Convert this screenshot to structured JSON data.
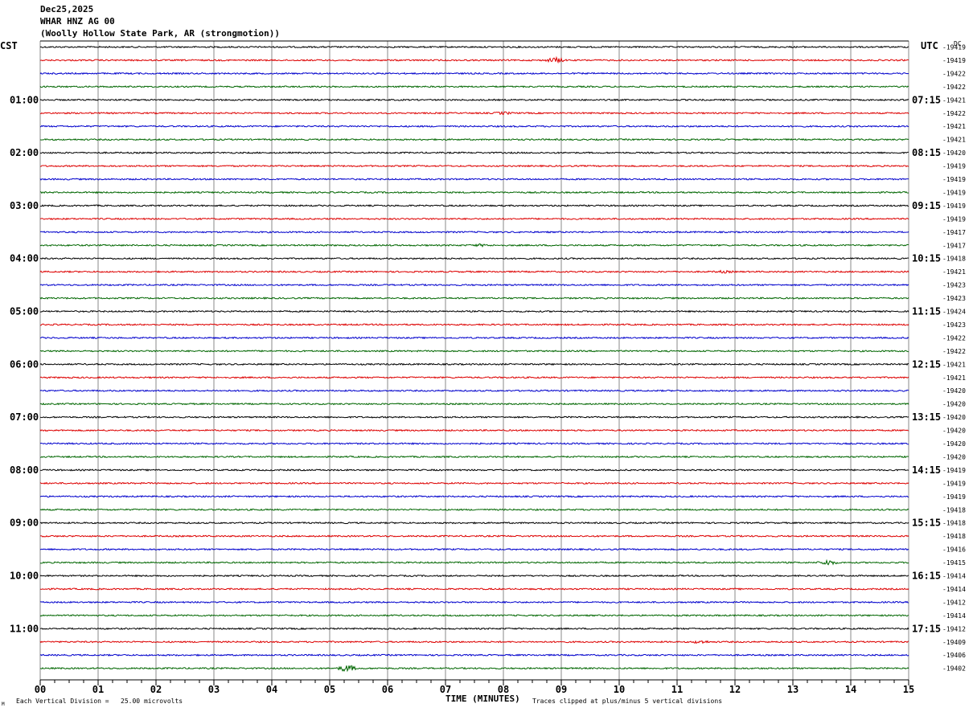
{
  "header": {
    "date": "Dec25,2025",
    "station": "WHAR HNZ AG 00",
    "location": "(Woolly Hollow State Park, AR (strongmotion))"
  },
  "labels": {
    "left_tz": "CST",
    "right_tz": "UTC",
    "dc_header": "DC",
    "xlabel": "TIME (MINUTES)",
    "scale_note": "Each Vertical Division =   25.00 microvolts",
    "clip_note": "Traces clipped at plus/minus 5 vertical divisions",
    "corner_mark": "M"
  },
  "colors": {
    "cycle": [
      "#000000",
      "#dd0000",
      "#0000cc",
      "#006600"
    ],
    "grid": "#888888"
  },
  "chart_data": {
    "type": "line",
    "title": "WHAR HNZ AG 00",
    "xlabel": "TIME (MINUTES)",
    "xlim": [
      0,
      15
    ],
    "x_ticks": [
      "00",
      "01",
      "02",
      "03",
      "04",
      "05",
      "06",
      "07",
      "08",
      "09",
      "10",
      "11",
      "12",
      "13",
      "14",
      "15"
    ],
    "left_hour_labels": [
      "01:00",
      "02:00",
      "03:00",
      "04:00",
      "05:00",
      "06:00",
      "07:00",
      "08:00",
      "09:00",
      "10:00",
      "11:00"
    ],
    "right_hour_labels": [
      "07:15",
      "08:15",
      "09:15",
      "10:15",
      "11:15",
      "12:15",
      "13:15",
      "14:15",
      "15:15",
      "16:15",
      "17:15"
    ],
    "dc_offsets": [
      -19419,
      -19419,
      -19422,
      -19422,
      -19421,
      -19422,
      -19421,
      -19421,
      -19420,
      -19419,
      -19419,
      -19419,
      -19419,
      -19419,
      -19417,
      -19417,
      -19418,
      -19421,
      -19423,
      -19423,
      -19424,
      -19423,
      -19422,
      -19422,
      -19421,
      -19421,
      -19420,
      -19420,
      -19420,
      -19420,
      -19420,
      -19420,
      -19419,
      -19419,
      -19419,
      -19418,
      -19418,
      -19418,
      -19416,
      -19415,
      -19414,
      -19414,
      -19412,
      -19414,
      -19412,
      -19409,
      -19406,
      -19402
    ],
    "events": [
      {
        "trace": 1,
        "minute": 8.9,
        "amplitude": 3.0
      },
      {
        "trace": 5,
        "minute": 8.0,
        "amplitude": 1.2
      },
      {
        "trace": 15,
        "minute": 7.6,
        "amplitude": 1.0
      },
      {
        "trace": 17,
        "minute": 11.8,
        "amplitude": 1.0
      },
      {
        "trace": 39,
        "minute": 13.6,
        "amplitude": 3.0
      },
      {
        "trace": 45,
        "minute": 11.4,
        "amplitude": 1.5
      },
      {
        "trace": 47,
        "minute": 5.3,
        "amplitude": 4.0
      }
    ],
    "scale_microvolts_per_division": 25.0,
    "clip_divisions": 5,
    "grid": true
  }
}
